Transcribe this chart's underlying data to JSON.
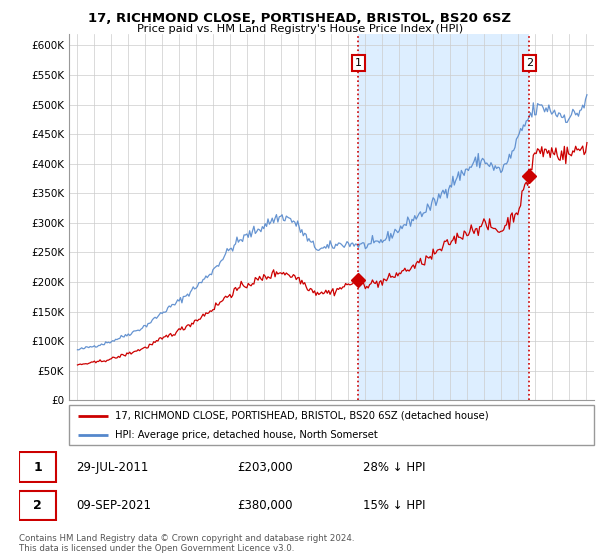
{
  "title": "17, RICHMOND CLOSE, PORTISHEAD, BRISTOL, BS20 6SZ",
  "subtitle": "Price paid vs. HM Land Registry's House Price Index (HPI)",
  "ylim": [
    0,
    620000
  ],
  "yticks": [
    0,
    50000,
    100000,
    150000,
    200000,
    250000,
    300000,
    350000,
    400000,
    450000,
    500000,
    550000,
    600000
  ],
  "ytick_labels": [
    "£0",
    "£50K",
    "£100K",
    "£150K",
    "£200K",
    "£250K",
    "£300K",
    "£350K",
    "£400K",
    "£450K",
    "£500K",
    "£550K",
    "£600K"
  ],
  "legend_label_red": "17, RICHMOND CLOSE, PORTISHEAD, BRISTOL, BS20 6SZ (detached house)",
  "legend_label_blue": "HPI: Average price, detached house, North Somerset",
  "red_color": "#cc0000",
  "blue_color": "#5588cc",
  "shade_color": "#ddeeff",
  "m1_x": 2011.58,
  "m1_y": 203000,
  "m2_x": 2021.69,
  "m2_y": 380000,
  "footnote": "Contains HM Land Registry data © Crown copyright and database right 2024.\nThis data is licensed under the Open Government Licence v3.0.",
  "xlim_left": 1994.5,
  "xlim_right": 2025.5
}
